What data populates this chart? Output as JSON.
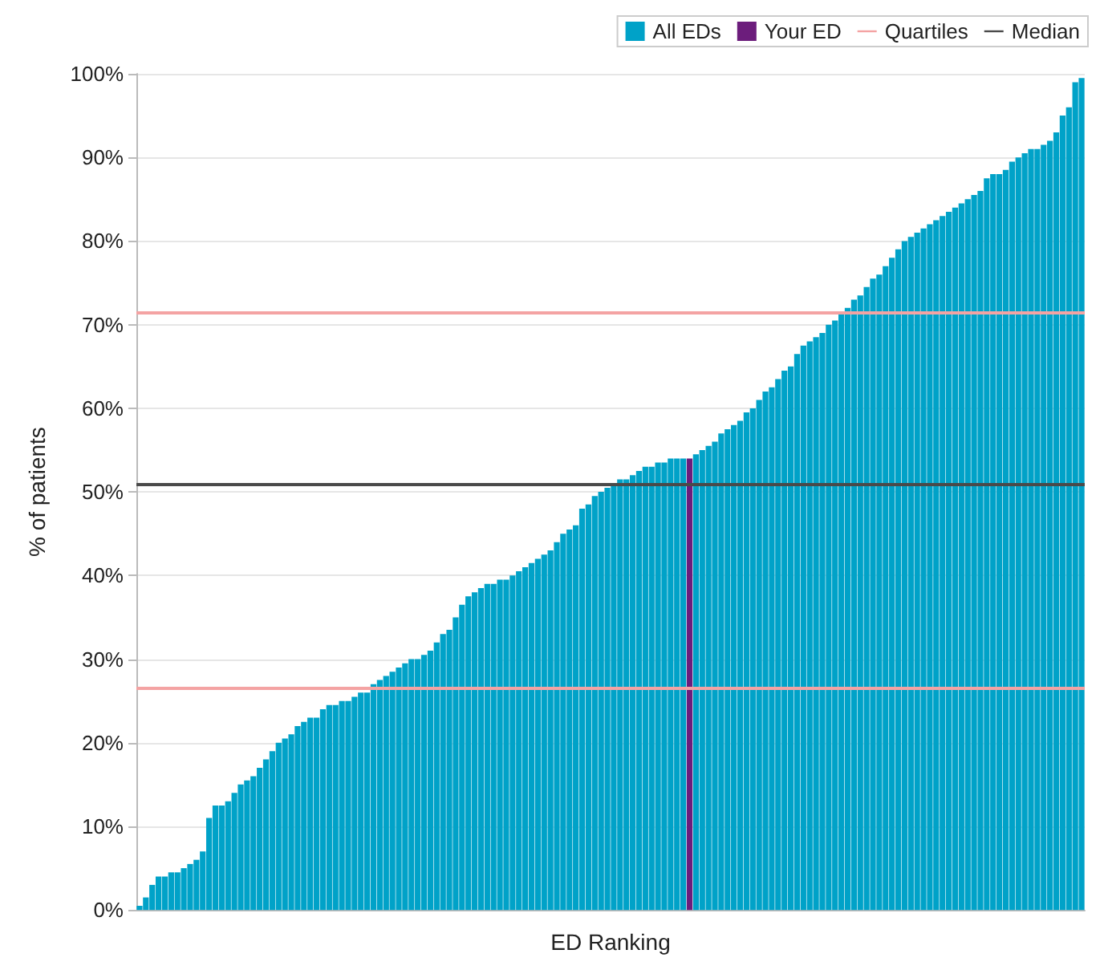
{
  "chart_data": {
    "type": "bar",
    "xlabel": "ED Ranking",
    "ylabel": "% of patients",
    "categories": [
      null,
      null,
      null,
      null,
      null,
      null,
      null,
      null,
      null,
      null,
      null,
      null,
      null,
      null,
      null,
      null,
      null,
      null,
      null,
      null,
      null,
      null,
      null,
      null,
      null,
      null,
      null,
      null,
      null,
      null,
      null,
      null,
      null,
      null,
      null,
      null,
      null,
      null,
      null,
      null,
      null,
      null,
      null,
      null,
      null,
      null,
      null,
      null,
      null,
      null,
      null,
      null,
      null,
      null,
      null,
      null,
      null,
      null,
      null,
      null,
      null,
      null,
      null,
      null,
      null,
      null,
      null,
      null,
      null,
      null,
      null,
      null,
      null,
      null,
      null,
      null,
      null,
      null,
      null,
      null,
      null,
      null,
      null,
      null,
      null,
      null,
      null,
      null,
      null,
      null,
      null,
      null,
      null,
      null,
      null,
      null,
      null,
      null,
      null,
      null,
      null,
      null,
      null,
      null,
      null,
      null,
      null,
      null,
      null,
      null,
      null,
      null,
      null,
      null,
      null,
      null,
      null,
      null,
      null,
      null,
      null,
      null,
      null,
      null,
      null,
      null,
      null,
      null,
      null,
      null,
      null,
      null,
      null,
      null,
      null,
      null,
      null,
      null,
      null,
      null,
      null,
      null,
      null,
      null,
      null,
      null,
      null,
      null,
      null,
      null
    ],
    "series": [
      {
        "name": "All EDs",
        "color": "#00a2c8",
        "values": [
          0.5,
          1.5,
          3,
          4,
          4,
          4.5,
          4.5,
          5,
          5.5,
          6,
          7,
          11,
          12.5,
          12.5,
          13,
          14,
          15,
          15.5,
          16,
          17,
          18,
          19,
          20,
          20.5,
          21,
          22,
          22.5,
          23,
          23,
          24,
          24.5,
          24.5,
          25,
          25,
          25.5,
          26,
          26,
          27,
          27.5,
          28,
          28.5,
          29,
          29.5,
          30,
          30,
          30.5,
          31,
          32,
          33,
          33.5,
          35,
          36.5,
          37.5,
          38,
          38.5,
          39,
          39,
          39.5,
          39.5,
          40,
          40.5,
          41,
          41.5,
          42,
          42.5,
          43,
          44,
          45,
          45.5,
          46,
          48,
          48.5,
          49.5,
          50,
          50.5,
          51,
          51.5,
          51.5,
          52,
          52.5,
          53,
          53,
          53.5,
          53.5,
          54,
          54,
          54,
          null,
          54.5,
          55,
          55.5,
          56,
          57,
          57.5,
          58,
          58.5,
          59.5,
          60,
          61,
          62,
          62.5,
          63.5,
          64.5,
          65,
          66.5,
          67.5,
          68,
          68.5,
          69,
          70,
          70.5,
          71.5,
          72,
          73,
          73.5,
          74.5,
          75.5,
          76,
          77,
          78,
          79,
          80,
          80.5,
          81,
          81.5,
          82,
          82.5,
          83,
          83.5,
          84,
          84.5,
          85,
          85.5,
          86,
          87.5,
          88,
          88,
          88.5,
          89.5,
          90,
          90.5,
          91,
          91,
          91.5,
          92,
          93,
          95,
          96,
          99,
          99.5
        ]
      },
      {
        "name": "Your ED",
        "color": "#6c1d7c",
        "values": [
          null,
          null,
          null,
          null,
          null,
          null,
          null,
          null,
          null,
          null,
          null,
          null,
          null,
          null,
          null,
          null,
          null,
          null,
          null,
          null,
          null,
          null,
          null,
          null,
          null,
          null,
          null,
          null,
          null,
          null,
          null,
          null,
          null,
          null,
          null,
          null,
          null,
          null,
          null,
          null,
          null,
          null,
          null,
          null,
          null,
          null,
          null,
          null,
          null,
          null,
          null,
          null,
          null,
          null,
          null,
          null,
          null,
          null,
          null,
          null,
          null,
          null,
          null,
          null,
          null,
          null,
          null,
          null,
          null,
          null,
          null,
          null,
          null,
          null,
          null,
          null,
          null,
          null,
          null,
          null,
          null,
          null,
          null,
          null,
          null,
          null,
          null,
          54,
          null,
          null,
          null,
          null,
          null,
          null,
          null,
          null,
          null,
          null,
          null,
          null,
          null,
          null,
          null,
          null,
          null,
          null,
          null,
          null,
          null,
          null,
          null,
          null,
          null,
          null,
          null,
          null,
          null,
          null,
          null,
          null,
          null,
          null,
          null,
          null,
          null,
          null,
          null,
          null,
          null,
          null,
          null,
          null,
          null,
          null,
          null,
          null,
          null,
          null,
          null,
          null,
          null,
          null,
          null,
          null,
          null,
          null,
          null,
          null,
          null,
          null
        ]
      }
    ],
    "ref_lines": [
      {
        "axis": "y",
        "value": 26.5,
        "label": "Quartiles",
        "color": "#f4a3a3"
      },
      {
        "axis": "y",
        "value": 71.5,
        "color": "#f4a3a3"
      },
      {
        "axis": "y",
        "value": 51,
        "label": "Median",
        "color": "#4a4a4a"
      }
    ],
    "ylim": [
      0,
      100
    ],
    "yticks": [
      {
        "value": 0,
        "label": "0%"
      },
      {
        "value": 10,
        "label": "10%"
      },
      {
        "value": 20,
        "label": "20%"
      },
      {
        "value": 30,
        "label": "30%"
      },
      {
        "value": 40,
        "label": "40%"
      },
      {
        "value": 50,
        "label": "50%"
      },
      {
        "value": 60,
        "label": "60%"
      },
      {
        "value": 70,
        "label": "70%"
      },
      {
        "value": 80,
        "label": "80%"
      },
      {
        "value": 90,
        "label": "90%"
      },
      {
        "value": 100,
        "label": "100%"
      }
    ],
    "grid": "y",
    "legend": "top right"
  }
}
